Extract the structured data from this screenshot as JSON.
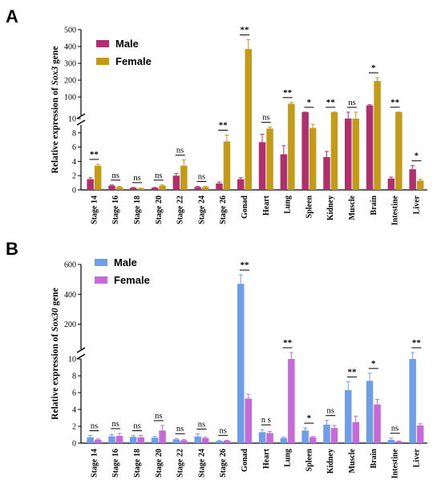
{
  "chart_data": [
    {
      "panel": "A",
      "type": "bar",
      "ylabel": "Relative expression of Sox3 gene",
      "gene": "Sox3",
      "categories": [
        "Stage 14",
        "Stage 16",
        "Stage 18",
        "Stage 20",
        "Stage 22",
        "Stage 24",
        "Stage 26",
        "Gonad",
        "Heart",
        "Lung",
        "Spleen",
        "Kidney",
        "Muscle",
        "Brain",
        "Intestine",
        "Liver"
      ],
      "series": [
        {
          "name": "Male",
          "color": "#b0306f",
          "values": [
            1.5,
            0.6,
            0.3,
            0.3,
            2.0,
            0.4,
            0.9,
            1.5,
            6.7,
            5.0,
            10.2,
            4.6,
            10,
            50,
            1.6,
            2.9
          ],
          "errors": [
            0.2,
            0.1,
            0.05,
            0.05,
            0.3,
            0.1,
            0.2,
            0.2,
            1.1,
            1.2,
            0.3,
            0.8,
            0.2,
            4,
            0.2,
            0.5
          ]
        },
        {
          "name": "Female",
          "color": "#c39b16",
          "values": [
            3.4,
            0.4,
            0.2,
            0.6,
            3.4,
            0.4,
            6.8,
            385,
            8.6,
            60,
            8.7,
            10.4,
            10,
            195,
            10.5,
            1.3
          ],
          "errors": [
            0.2,
            0.1,
            0.05,
            0.1,
            0.8,
            0.1,
            0.9,
            55,
            0.2,
            8,
            0.5,
            0.2,
            0.2,
            20,
            0.3,
            0.2
          ]
        }
      ],
      "significance": [
        "**",
        "ns",
        "ns",
        "ns",
        "ns",
        "ns",
        "**",
        "**",
        "ns",
        "**",
        "*",
        "**",
        "ns",
        "*",
        "**",
        "*"
      ],
      "axis": {
        "lower_range": [
          0,
          10
        ],
        "lower_ticks": [
          0,
          2,
          4,
          6,
          8,
          10
        ],
        "upper_range": [
          10,
          500
        ],
        "upper_ticks": [
          100,
          200,
          300,
          400,
          500
        ]
      }
    },
    {
      "panel": "B",
      "type": "bar",
      "ylabel": "Relative expression of Sox30 gene",
      "gene": "Sox30",
      "categories": [
        "Stage 14",
        "Stage 16",
        "Stage 18",
        "Stage 20",
        "Stage 22",
        "Stage 24",
        "Stage 26",
        "Gonad",
        "Heart",
        "Lung",
        "Spleen",
        "Kidney",
        "Muscle",
        "Brain",
        "Intestine",
        "Liver"
      ],
      "series": [
        {
          "name": "Male",
          "color": "#6f9ee8",
          "values": [
            0.7,
            0.8,
            0.75,
            0.65,
            0.45,
            0.8,
            0.25,
            470,
            1.3,
            0.6,
            1.5,
            2.2,
            6.3,
            7.4,
            0.4,
            10
          ],
          "errors": [
            0.2,
            0.2,
            0.15,
            0.15,
            0.1,
            0.3,
            0.05,
            60,
            0.3,
            0.1,
            0.3,
            0.5,
            1.0,
            0.9,
            0.2,
            0.2
          ]
        },
        {
          "name": "Female",
          "color": "#c669d9",
          "values": [
            0.4,
            0.85,
            0.7,
            1.5,
            0.35,
            0.6,
            0.3,
            5.3,
            1.2,
            10,
            0.7,
            1.8,
            2.5,
            4.6,
            0.2,
            2.1
          ],
          "errors": [
            0.1,
            0.3,
            0.2,
            0.6,
            0.1,
            0.1,
            0.05,
            0.5,
            0.2,
            0.2,
            0.1,
            0.3,
            0.7,
            0.6,
            0.05,
            0.2
          ]
        }
      ],
      "significance": [
        "ns",
        "ns",
        "ns",
        "ns",
        "ns",
        "ns",
        "ns",
        "**",
        "n s",
        "**",
        "*",
        "ns",
        "**",
        "*",
        "ns",
        "**"
      ],
      "axis": {
        "lower_range": [
          0,
          10
        ],
        "lower_ticks": [
          0,
          2,
          4,
          6,
          8,
          10
        ],
        "upper_range": [
          10,
          600
        ],
        "upper_ticks": [
          200,
          400,
          600
        ]
      }
    }
  ]
}
